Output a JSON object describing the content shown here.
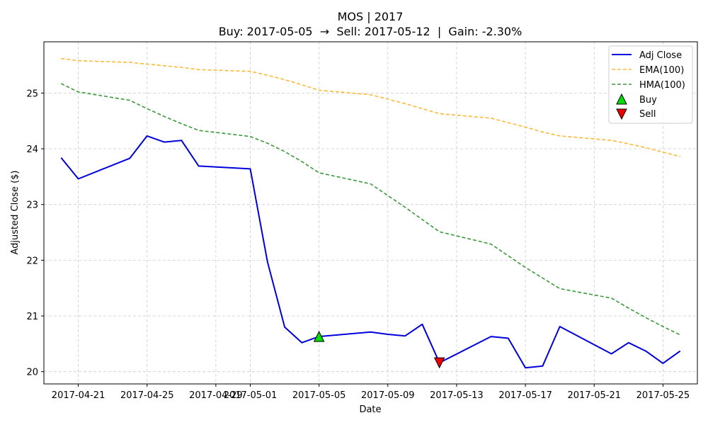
{
  "chart_data": {
    "type": "line",
    "title": "MOS | 2017",
    "subtitle": "Buy: 2017-05-05  →  Sell: 2017-05-12  |  Gain: -2.30%",
    "xlabel": "Date",
    "ylabel": "Adjusted Close ($)",
    "xlim": [
      "2017-04-19",
      "2017-05-27"
    ],
    "ylim": [
      19.78,
      25.92
    ],
    "grid": true,
    "legend_position": "top-right",
    "x_ticks": [
      "2017-04-21",
      "2017-04-25",
      "2017-04-29",
      "2017-05-01",
      "2017-05-05",
      "2017-05-09",
      "2017-05-13",
      "2017-05-17",
      "2017-05-21",
      "2017-05-25"
    ],
    "y_ticks": [
      20,
      21,
      22,
      23,
      24,
      25
    ],
    "series": [
      {
        "name": "Adj Close",
        "color": "#0000dd",
        "style": "solid",
        "points": [
          [
            "2017-04-20",
            23.84
          ],
          [
            "2017-04-21",
            23.46
          ],
          [
            "2017-04-24",
            23.83
          ],
          [
            "2017-04-25",
            24.23
          ],
          [
            "2017-04-26",
            24.12
          ],
          [
            "2017-04-27",
            24.15
          ],
          [
            "2017-04-28",
            23.69
          ],
          [
            "2017-05-01",
            23.64
          ],
          [
            "2017-05-02",
            21.97
          ],
          [
            "2017-05-03",
            20.8
          ],
          [
            "2017-05-04",
            20.52
          ],
          [
            "2017-05-05",
            20.63
          ],
          [
            "2017-05-08",
            20.71
          ],
          [
            "2017-05-09",
            20.67
          ],
          [
            "2017-05-10",
            20.64
          ],
          [
            "2017-05-11",
            20.85
          ],
          [
            "2017-05-12",
            20.16
          ],
          [
            "2017-05-15",
            20.63
          ],
          [
            "2017-05-16",
            20.6
          ],
          [
            "2017-05-17",
            20.07
          ],
          [
            "2017-05-18",
            20.1
          ],
          [
            "2017-05-19",
            20.81
          ],
          [
            "2017-05-22",
            20.32
          ],
          [
            "2017-05-23",
            20.52
          ],
          [
            "2017-05-24",
            20.37
          ],
          [
            "2017-05-25",
            20.15
          ],
          [
            "2017-05-26",
            20.37
          ]
        ]
      },
      {
        "name": "EMA(100)",
        "color": "#ffb833",
        "style": "dashed",
        "points": [
          [
            "2017-04-20",
            25.62
          ],
          [
            "2017-04-21",
            25.58
          ],
          [
            "2017-04-24",
            25.55
          ],
          [
            "2017-04-25",
            25.52
          ],
          [
            "2017-04-26",
            25.49
          ],
          [
            "2017-04-27",
            25.46
          ],
          [
            "2017-04-28",
            25.42
          ],
          [
            "2017-05-01",
            25.39
          ],
          [
            "2017-05-02",
            25.32
          ],
          [
            "2017-05-03",
            25.24
          ],
          [
            "2017-05-04",
            25.15
          ],
          [
            "2017-05-05",
            25.05
          ],
          [
            "2017-05-08",
            24.97
          ],
          [
            "2017-05-09",
            24.89
          ],
          [
            "2017-05-10",
            24.81
          ],
          [
            "2017-05-11",
            24.72
          ],
          [
            "2017-05-12",
            24.63
          ],
          [
            "2017-05-15",
            24.55
          ],
          [
            "2017-05-16",
            24.47
          ],
          [
            "2017-05-17",
            24.39
          ],
          [
            "2017-05-18",
            24.3
          ],
          [
            "2017-05-19",
            24.23
          ],
          [
            "2017-05-22",
            24.15
          ],
          [
            "2017-05-23",
            24.09
          ],
          [
            "2017-05-24",
            24.02
          ],
          [
            "2017-05-25",
            23.94
          ],
          [
            "2017-05-26",
            23.86
          ]
        ]
      },
      {
        "name": "HMA(100)",
        "color": "#3a9a3a",
        "style": "dashed",
        "points": [
          [
            "2017-04-20",
            25.17
          ],
          [
            "2017-04-21",
            25.02
          ],
          [
            "2017-04-24",
            24.87
          ],
          [
            "2017-04-25",
            24.72
          ],
          [
            "2017-04-26",
            24.58
          ],
          [
            "2017-04-27",
            24.45
          ],
          [
            "2017-04-28",
            24.33
          ],
          [
            "2017-05-01",
            24.22
          ],
          [
            "2017-05-02",
            24.1
          ],
          [
            "2017-05-03",
            23.95
          ],
          [
            "2017-05-04",
            23.77
          ],
          [
            "2017-05-05",
            23.57
          ],
          [
            "2017-05-08",
            23.37
          ],
          [
            "2017-05-09",
            23.16
          ],
          [
            "2017-05-10",
            22.95
          ],
          [
            "2017-05-11",
            22.73
          ],
          [
            "2017-05-12",
            22.51
          ],
          [
            "2017-05-15",
            22.29
          ],
          [
            "2017-05-16",
            22.08
          ],
          [
            "2017-05-17",
            21.87
          ],
          [
            "2017-05-18",
            21.68
          ],
          [
            "2017-05-19",
            21.49
          ],
          [
            "2017-05-22",
            21.32
          ],
          [
            "2017-05-23",
            21.14
          ],
          [
            "2017-05-24",
            20.97
          ],
          [
            "2017-05-25",
            20.81
          ],
          [
            "2017-05-26",
            20.66
          ]
        ]
      }
    ],
    "markers": [
      {
        "name": "Buy",
        "date": "2017-05-05",
        "value": 20.63,
        "color": "#00dd00",
        "shape": "triangle-up"
      },
      {
        "name": "Sell",
        "date": "2017-05-12",
        "value": 20.16,
        "color": "#ee0000",
        "shape": "triangle-down"
      }
    ]
  }
}
